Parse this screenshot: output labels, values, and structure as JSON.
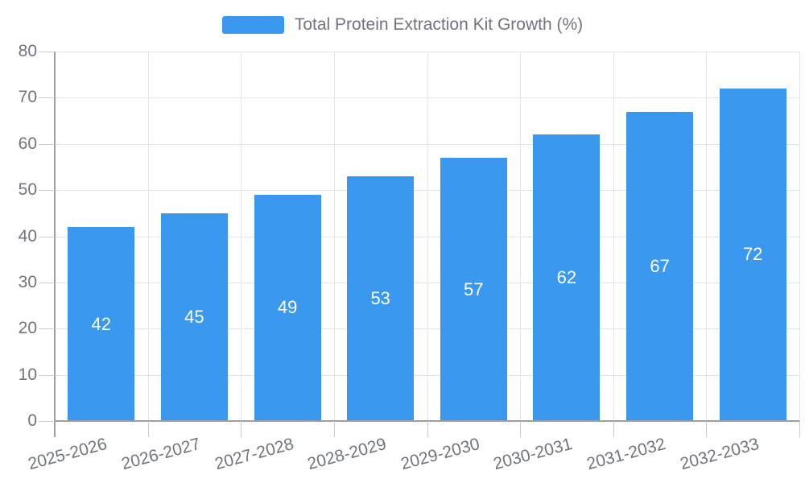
{
  "chart_data": {
    "type": "bar",
    "title": "Total Protein Extraction Kit Growth (%)",
    "categories": [
      "2025-2026",
      "2026-2027",
      "2027-2028",
      "2028-2029",
      "2029-2030",
      "2030-2031",
      "2031-2032",
      "2032-2033"
    ],
    "values": [
      42,
      45,
      49,
      53,
      57,
      62,
      67,
      72
    ],
    "series_name": "Total Protein Extraction Kit Growth (%)",
    "xlabel": "",
    "ylabel": "",
    "ylim": [
      0,
      80
    ],
    "y_ticks": [
      0,
      10,
      20,
      30,
      40,
      50,
      60,
      70,
      80
    ],
    "grid": "on",
    "legend_position": "top",
    "value_labels": "inside-center",
    "colors": {
      "bar": "#3A99EF",
      "value_label": "#FFFFFF",
      "axis_label": "#70747C",
      "legend_label": "#70747C",
      "grid_line": "#E2E4E8",
      "axis_line": "#9B9EA4",
      "tick_line": "#C9CBD0",
      "background": "#FFFFFF"
    }
  }
}
